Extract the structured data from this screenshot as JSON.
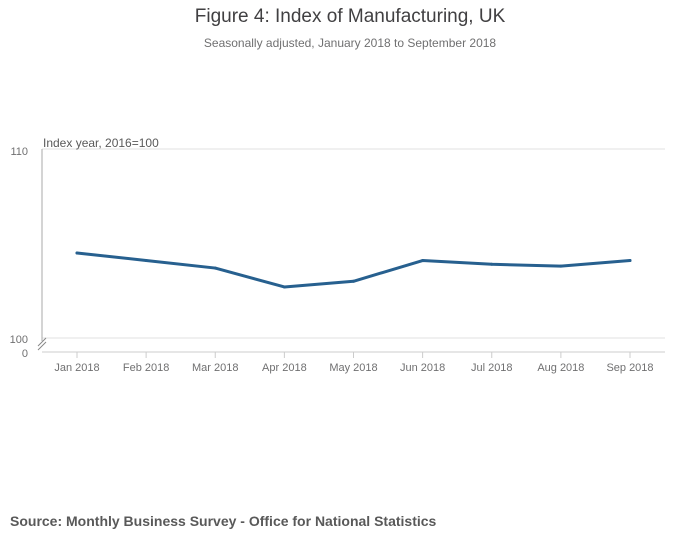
{
  "chart_data": {
    "type": "line",
    "title": "Figure 4: Index of Manufacturing, UK",
    "subtitle": "Seasonally adjusted, January 2018 to September 2018",
    "ylabel": "Index year, 2016=100",
    "xlabel": "",
    "categories": [
      "Jan 2018",
      "Feb 2018",
      "Mar 2018",
      "Apr 2018",
      "May 2018",
      "Jun 2018",
      "Jul 2018",
      "Aug 2018",
      "Sep 2018"
    ],
    "series": [
      {
        "name": "Index of Manufacturing",
        "values": [
          104.5,
          104.1,
          103.7,
          102.7,
          103.0,
          104.1,
          103.9,
          103.8,
          104.1
        ]
      }
    ],
    "ylim": [
      100,
      110
    ],
    "yticks": [
      "110",
      "100"
    ],
    "axis_break_label": "0",
    "grid": true,
    "line_color": "#27608f",
    "source": "Source: Monthly Business Survey - Office for National Statistics"
  }
}
